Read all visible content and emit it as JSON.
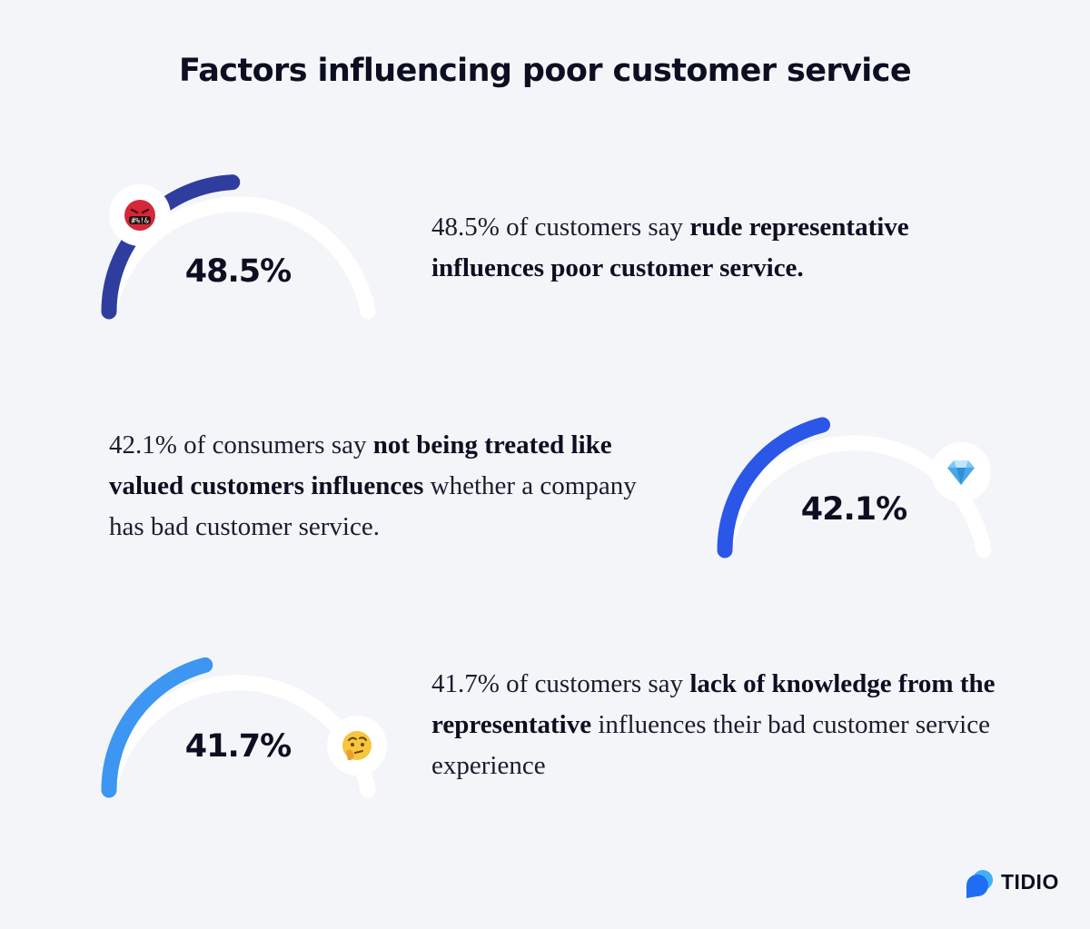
{
  "title": "Factors influencing poor customer service",
  "chart_data": [
    {
      "type": "gauge",
      "value": 48.5,
      "label": "48.5%",
      "color": "#2f3d9e",
      "emoji": "face-with-symbols-on-mouth-icon",
      "text_parts": [
        {
          "text": "48.5% of customers say ",
          "bold": false
        },
        {
          "text": "rude representative influences poor customer service.",
          "bold": true
        }
      ]
    },
    {
      "type": "gauge",
      "value": 42.1,
      "label": "42.1%",
      "color": "#2b57e8",
      "emoji": "gem-icon",
      "text_parts": [
        {
          "text": "42.1% of consumers say ",
          "bold": false
        },
        {
          "text": "not being treated like valued customers influences",
          "bold": true
        },
        {
          "text": " whether a company has bad customer service.",
          "bold": false
        }
      ]
    },
    {
      "type": "gauge",
      "value": 41.7,
      "label": "41.7%",
      "color": "#3c96f2",
      "emoji": "thinking-face-icon",
      "text_parts": [
        {
          "text": "41.7% of customers say ",
          "bold": false
        },
        {
          "text": "lack of knowledge from the representative",
          "bold": true
        },
        {
          "text": " influences their bad customer service experience",
          "bold": false
        }
      ]
    }
  ],
  "brand": {
    "name": "TIDIO",
    "color": "#1e6df2"
  }
}
